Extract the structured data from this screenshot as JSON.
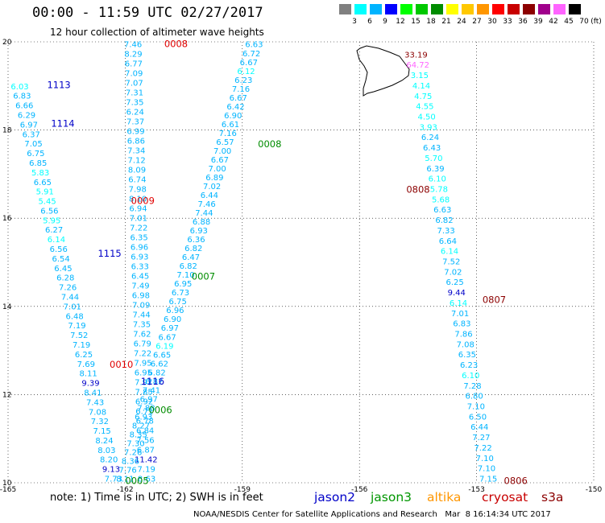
{
  "title": "00:00 - 11:59 UTC 02/27/2017",
  "subtitle": "12 hour collection of altimeter wave heights",
  "colorbar": {
    "unit_label": "(ft)",
    "bins": [
      {
        "label": "3",
        "color": "#808080"
      },
      {
        "label": "6",
        "color": "#00ffff"
      },
      {
        "label": "9",
        "color": "#00b4ff"
      },
      {
        "label": "12",
        "color": "#0000ff"
      },
      {
        "label": "15",
        "color": "#00ff00"
      },
      {
        "label": "18",
        "color": "#00c800"
      },
      {
        "label": "21",
        "color": "#008c00"
      },
      {
        "label": "24",
        "color": "#ffff00"
      },
      {
        "label": "27",
        "color": "#ffc800"
      },
      {
        "label": "30",
        "color": "#ff9600"
      },
      {
        "label": "33",
        "color": "#ff0000"
      },
      {
        "label": "36",
        "color": "#c80000"
      },
      {
        "label": "39",
        "color": "#8c0000"
      },
      {
        "label": "42",
        "color": "#a0008c"
      },
      {
        "label": "45",
        "color": "#ff64ff"
      },
      {
        "label": "70",
        "color": "#000000"
      }
    ]
  },
  "map": {
    "lon_min": -165,
    "lon_max": -150,
    "lat_min": 10,
    "lat_max": 20,
    "lon_ticks": [
      "-165",
      "-162",
      "-159",
      "-156",
      "-153",
      "-150"
    ],
    "lat_ticks": [
      "20",
      "18",
      "16",
      "14",
      "12",
      "10"
    ],
    "island_feature": "Hawaii (Big Island) coastline"
  },
  "pass_labels": [
    {
      "text": "0008",
      "color": "#e00000",
      "lon": -161.0,
      "lat": 19.95
    },
    {
      "text": "0008",
      "color": "#008c00",
      "lon": -158.6,
      "lat": 17.68
    },
    {
      "text": "0009",
      "color": "#e00000",
      "lon": -161.85,
      "lat": 16.4
    },
    {
      "text": "0007",
      "color": "#008c00",
      "lon": -160.3,
      "lat": 14.68
    },
    {
      "text": "0010",
      "color": "#e00000",
      "lon": -162.4,
      "lat": 12.68
    },
    {
      "text": "1116",
      "color": "#0000c8",
      "lon": -161.6,
      "lat": 12.3
    },
    {
      "text": "0006",
      "color": "#008c00",
      "lon": -161.4,
      "lat": 11.65
    },
    {
      "text": "0005",
      "color": "#008c00",
      "lon": -162.0,
      "lat": 10.05
    },
    {
      "text": "1113",
      "color": "#0000c8",
      "lon": -164.0,
      "lat": 19.02
    },
    {
      "text": "1114",
      "color": "#0000c8",
      "lon": -163.9,
      "lat": 18.15
    },
    {
      "text": "1115",
      "color": "#0000c8",
      "lon": -162.7,
      "lat": 15.2
    },
    {
      "text": "0808",
      "color": "#8c0000",
      "lon": -154.8,
      "lat": 16.65
    },
    {
      "text": "0807",
      "color": "#8c0000",
      "lon": -152.85,
      "lat": 14.15
    },
    {
      "text": "0806",
      "color": "#8c0000",
      "lon": -152.3,
      "lat": 10.05
    }
  ],
  "tracks": [
    {
      "id": "A",
      "lon_start": -161.8,
      "lon_end": -161.45,
      "lat_top": 19.95,
      "lat_bot": 10.1,
      "values": [
        "7.46",
        "8.29",
        "6.77",
        "7.09",
        "7.07",
        "7.31",
        "7.35",
        "6.24",
        "7.37",
        "6.99",
        "6.86",
        "7.34",
        "7.12",
        "8.09",
        "6.74",
        "7.98",
        "8.10",
        "6.94",
        "7.01",
        "7.22",
        "6.35",
        "6.96",
        "6.93",
        "6.33",
        "6.45",
        "7.49",
        "6.98",
        "7.09",
        "7.44",
        "7.35",
        "7.62",
        "6.79",
        "7.22",
        "7.95",
        "6.95",
        "7.97",
        "7.85",
        "6.92",
        "6.71",
        "6.78",
        "6.84",
        "7.56",
        "6.87",
        "11.42",
        "7.19",
        "8.63"
      ]
    },
    {
      "id": "B",
      "lon_start": -164.7,
      "lon_end": -162.3,
      "lat_top": 19.0,
      "lat_bot": 10.1,
      "values": [
        "6.03",
        "6.83",
        "6.66",
        "6.29",
        "6.97",
        "6.37",
        "7.05",
        "6.75",
        "6.85",
        "5.83",
        "6.65",
        "5.91",
        "5.45",
        "6.56",
        "5.95",
        "6.27",
        "6.14",
        "6.56",
        "6.54",
        "6.45",
        "6.28",
        "7.26",
        "7.44",
        "7.01",
        "6.48",
        "7.19",
        "7.52",
        "7.19",
        "6.25",
        "7.69",
        "8.11",
        "9.39",
        "8.41",
        "7.43",
        "7.08",
        "7.32",
        "7.15",
        "8.24",
        "8.03",
        "8.20",
        "9.13",
        "7.73"
      ]
    },
    {
      "id": "C",
      "lon_start": -158.7,
      "lon_end": -162.0,
      "lat_top": 19.95,
      "lat_bot": 10.1,
      "values": [
        "6.63",
        "6.72",
        "6.67",
        "6.12",
        "6.23",
        "7.16",
        "6.67",
        "6.42",
        "6.90",
        "6.61",
        "7.16",
        "6.57",
        "7.00",
        "6.67",
        "7.00",
        "6.89",
        "7.02",
        "6.44",
        "7.46",
        "7.44",
        "6.88",
        "6.93",
        "6.36",
        "6.82",
        "6.47",
        "6.82",
        "7.10",
        "6.95",
        "6.73",
        "6.75",
        "6.96",
        "6.90",
        "6.97",
        "6.67",
        "6.19",
        "6.65",
        "6.62",
        "6.82",
        "6.82",
        "7.41",
        "6.97",
        "7.88",
        "6.93",
        "8.27",
        "8.35",
        "7.30",
        "7.26",
        "8.36",
        "7.76",
        "8.11"
      ]
    },
    {
      "id": "D",
      "lon_start": -154.55,
      "lon_end": -152.7,
      "lat_top": 19.72,
      "lat_bot": 10.1,
      "values": [
        "33.19",
        "64.72",
        "3.15",
        "4.14",
        "4.75",
        "4.55",
        "4.50",
        "3.93",
        "6.24",
        "6.43",
        "5.70",
        "6.39",
        "6.10",
        "5.78",
        "5.68",
        "6.63",
        "6.82",
        "7.33",
        "6.64",
        "6.14",
        "7.52",
        "7.02",
        "6.25",
        "9.44",
        "6.14",
        "7.01",
        "6.83",
        "7.86",
        "7.08",
        "6.35",
        "6.23",
        "6.10",
        "7.28",
        "6.80",
        "7.10",
        "6.50",
        "6.44",
        "7.27",
        "7.22",
        "7.10",
        "7.10",
        "7.15"
      ],
      "colors": {
        "0": "#8c0000",
        "1": "#ff64ff",
        "23": "#0000c8"
      }
    }
  ],
  "point_colors": {
    "default": "#00b4ff",
    "light": "#00ffff",
    "high": "#0000c8"
  },
  "note": "note: 1) Time is in UTC; 2) SWH is in feet",
  "satellites": [
    {
      "name": "jason2",
      "color": "#0000c8"
    },
    {
      "name": "jason3",
      "color": "#009600"
    },
    {
      "name": "altika",
      "color": "#ff9600"
    },
    {
      "name": "cryosat",
      "color": "#c80000"
    },
    {
      "name": "s3a",
      "color": "#8c0000"
    }
  ],
  "footer": "NOAA/NESDIS Center for Satellite Applications and Research   Mar  8 16:14:34 UTC 2017"
}
